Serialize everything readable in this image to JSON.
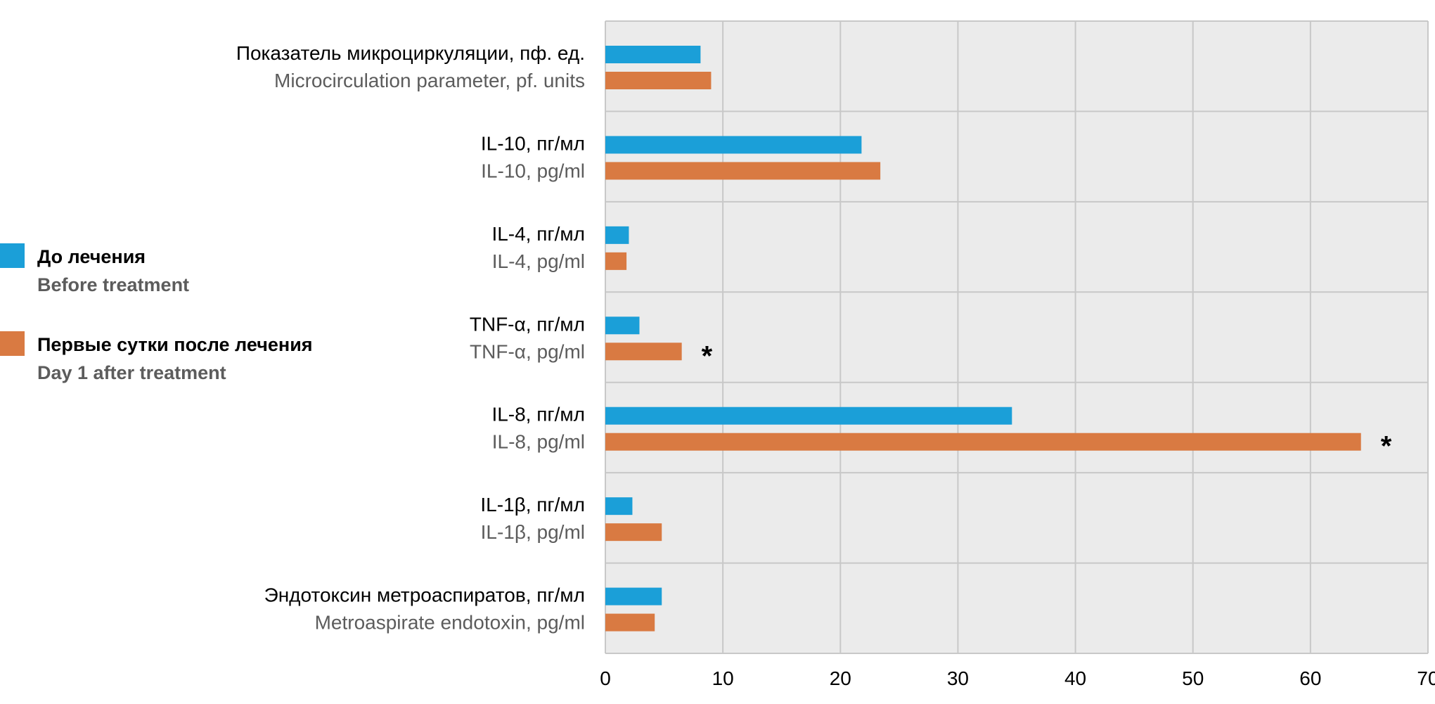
{
  "chart_data": {
    "type": "bar",
    "orientation": "horizontal",
    "grid": true,
    "legend_placement": "left",
    "xlim": [
      0,
      70
    ],
    "x_ticks": [
      "0",
      "10",
      "20",
      "30",
      "40",
      "50",
      "60",
      "70"
    ],
    "categories": [
      {
        "ru": "Показатель микроциркуляции, пф. ед.",
        "en": "Microcirculation parameter, pf. units"
      },
      {
        "ru": "IL-10, пг/мл",
        "en": "IL-10, pg/ml"
      },
      {
        "ru": "IL-4, пг/мл",
        "en": "IL-4, pg/ml"
      },
      {
        "ru": "TNF-α, пг/мл",
        "en": "TNF-α, pg/ml"
      },
      {
        "ru": "IL-8, пг/мл",
        "en": "IL-8, pg/ml"
      },
      {
        "ru": "IL-1β, пг/мл",
        "en": "IL-1β, pg/ml"
      },
      {
        "ru": "Эндотоксин метроаспиратов, пг/мл",
        "en": "Metroaspirate endotoxin, pg/ml"
      }
    ],
    "series": [
      {
        "name": "До лечения",
        "name_en": "Before treatment",
        "color": "#1b9fd8",
        "values": [
          8.1,
          21.8,
          2.0,
          2.9,
          34.6,
          2.3,
          4.8
        ]
      },
      {
        "name": "Первые сутки после лечения",
        "name_en": "Day 1 after treatment",
        "color": "#d97a42",
        "values": [
          9.0,
          23.4,
          1.8,
          6.5,
          64.3,
          4.8,
          4.2
        ]
      }
    ],
    "significance_marker": "*",
    "significant": [
      false,
      false,
      false,
      true,
      true,
      false,
      false
    ]
  },
  "colors": {
    "plot_background": "#ebebeb",
    "grid": "#c8c8c8"
  }
}
